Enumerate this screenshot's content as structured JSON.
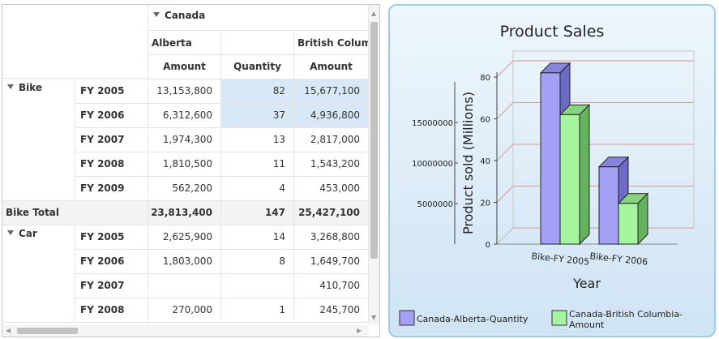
{
  "grid": {
    "top_header": {
      "country": "Canada"
    },
    "provinces": [
      "Alberta",
      "British Columbi"
    ],
    "measures": [
      "Amount",
      "Quantity",
      "Amount"
    ],
    "rows": [
      {
        "group": "Bike",
        "year": "FY 2005",
        "alberta_amount": "13,153,800",
        "alberta_qty": "82",
        "bc_amount": "15,677,100",
        "selected": true
      },
      {
        "group": "",
        "year": "FY 2006",
        "alberta_amount": "6,312,600",
        "alberta_qty": "37",
        "bc_amount": "4,936,800",
        "selected": true
      },
      {
        "group": "",
        "year": "FY 2007",
        "alberta_amount": "1,974,300",
        "alberta_qty": "13",
        "bc_amount": "2,817,000"
      },
      {
        "group": "",
        "year": "FY 2008",
        "alberta_amount": "1,810,500",
        "alberta_qty": "11",
        "bc_amount": "1,543,200"
      },
      {
        "group": "",
        "year": "FY 2009",
        "alberta_amount": "562,200",
        "alberta_qty": "4",
        "bc_amount": "453,000"
      },
      {
        "total": "Bike Total",
        "alberta_amount": "23,813,400",
        "alberta_qty": "147",
        "bc_amount": "25,427,100"
      },
      {
        "group": "Car",
        "year": "FY 2005",
        "alberta_amount": "2,625,900",
        "alberta_qty": "14",
        "bc_amount": "3,268,800"
      },
      {
        "group": "",
        "year": "FY 2006",
        "alberta_amount": "1,803,000",
        "alberta_qty": "8",
        "bc_amount": "1,649,700"
      },
      {
        "group": "",
        "year": "FY 2007",
        "alberta_amount": "",
        "alberta_qty": "",
        "bc_amount": "410,700"
      },
      {
        "group": "",
        "year": "FY 2008",
        "alberta_amount": "270,000",
        "alberta_qty": "1",
        "bc_amount": "245,700"
      }
    ]
  },
  "chart_data": {
    "type": "bar",
    "title": "Product Sales",
    "xlabel": "Year",
    "ylabel": "Product sold (Millions)",
    "categories": [
      "Bike-FY 2005",
      "Bike-FY 2006"
    ],
    "series": [
      {
        "name": "Canada-Alberta-Quantity",
        "values": [
          82,
          37
        ],
        "color": "#a3a0f5",
        "axis": "right"
      },
      {
        "name": "Canada-British Columbia-Amount",
        "values": [
          15677100,
          4936800
        ],
        "color": "#a6f59e",
        "axis": "left"
      }
    ],
    "left_axis": {
      "ticks": [
        "5000000",
        "10000000",
        "15000000"
      ],
      "values": [
        5000000,
        10000000,
        15000000
      ]
    },
    "right_axis": {
      "ticks": [
        "0",
        "20",
        "40",
        "60",
        "80"
      ],
      "values": [
        0,
        20,
        40,
        60,
        80
      ],
      "ylim": [
        0,
        80
      ]
    },
    "legend_position": "bottom",
    "gridlines": true
  },
  "colors": {
    "selection": "#d9e8f6",
    "panel_border": "#9ecbe6"
  }
}
